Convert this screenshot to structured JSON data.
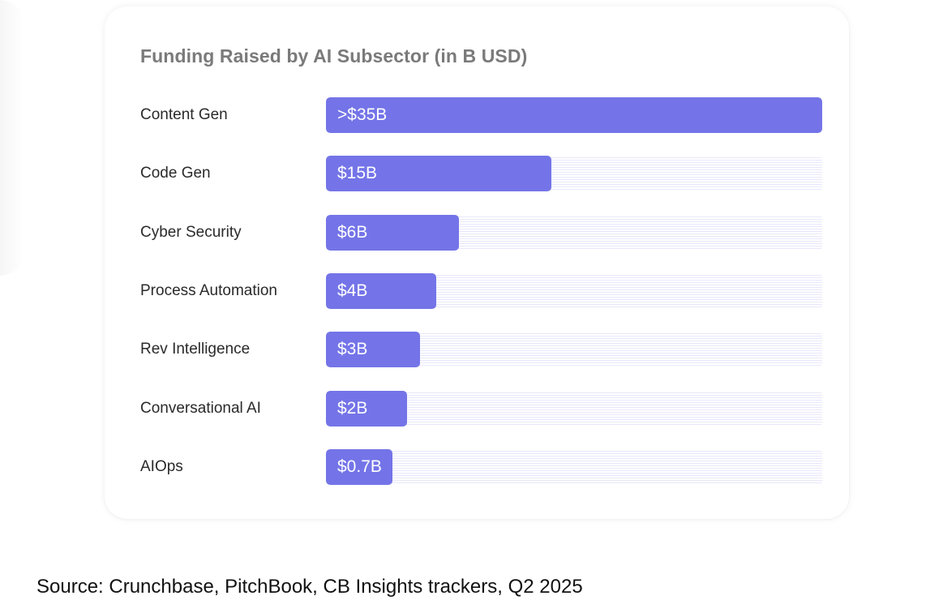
{
  "chart_data": {
    "type": "bar",
    "orientation": "horizontal",
    "title": "Funding Raised by AI Subsector (in B USD)",
    "xlabel": "",
    "ylabel": "",
    "categories": [
      "Content Gen",
      "Code Gen",
      "Cyber Security",
      "Process Automation",
      "Rev Intelligence",
      "Conversational AI",
      "AIOps"
    ],
    "values": [
      35,
      15,
      6,
      4,
      3,
      2,
      0.7
    ],
    "bar_fraction": [
      1.0,
      0.455,
      0.268,
      0.222,
      0.19,
      0.163,
      0.134
    ],
    "data_labels": [
      ">$35B",
      "$15B",
      "$6B",
      "$4B",
      "$3B",
      "$2B",
      "$0.7B"
    ],
    "grid": false,
    "legend": "none"
  },
  "source": "Source: Crunchbase, PitchBook, CB Insights trackers, Q2 2025",
  "colors": {
    "bar": "#7474e8",
    "track": "#e8e7fb",
    "title": "#7a7a7a",
    "label": "#2a2a2a"
  }
}
